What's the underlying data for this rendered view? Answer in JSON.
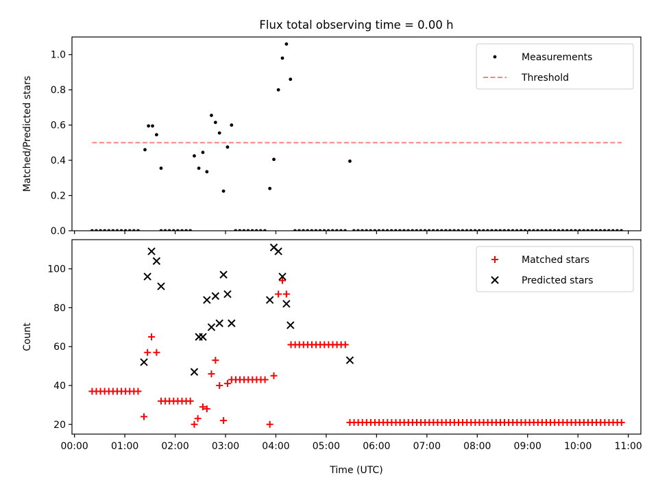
{
  "title": "Flux total observing time = 0.00 h",
  "x_axis_label": "Time (UTC)",
  "x_tick_labels": [
    "00:00",
    "01:00",
    "02:00",
    "03:00",
    "04:00",
    "05:00",
    "06:00",
    "07:00",
    "08:00",
    "09:00",
    "10:00",
    "11:00"
  ],
  "colors": {
    "measurements": "#000000",
    "threshold": "#ff7f7f",
    "matched": "#ff0000",
    "predicted": "#000000"
  },
  "chart_data": [
    {
      "type": "scatter",
      "ylabel": "Matched/Predicted stars",
      "xlim": [
        -0.05,
        11.25
      ],
      "ylim": [
        0,
        1.1
      ],
      "yticks": [
        0.0,
        0.2,
        0.4,
        0.6,
        0.8,
        1.0
      ],
      "ytick_labels": [
        "0.0",
        "0.2",
        "0.4",
        "0.6",
        "0.8",
        "1.0"
      ],
      "legend": {
        "placement": "upper right",
        "entries": [
          "Measurements",
          "Threshold"
        ]
      },
      "series": [
        {
          "name": "Measurements",
          "marker": "dot",
          "points": [
            [
              1.4,
              0.46
            ],
            [
              1.47,
              0.595
            ],
            [
              1.55,
              0.595
            ],
            [
              1.63,
              0.545
            ],
            [
              1.72,
              0.355
            ],
            [
              2.38,
              0.425
            ],
            [
              2.47,
              0.355
            ],
            [
              2.55,
              0.445
            ],
            [
              2.63,
              0.335
            ],
            [
              2.72,
              0.655
            ],
            [
              2.8,
              0.615
            ],
            [
              2.88,
              0.555
            ],
            [
              2.96,
              0.225
            ],
            [
              3.04,
              0.475
            ],
            [
              3.12,
              0.6
            ],
            [
              3.88,
              0.24
            ],
            [
              3.96,
              0.405
            ],
            [
              4.05,
              0.8
            ],
            [
              4.13,
              0.98
            ],
            [
              4.21,
              1.06
            ],
            [
              4.29,
              0.86
            ],
            [
              5.47,
              0.395
            ]
          ],
          "zero_runs": [
            [
              0.35,
              1.31
            ],
            [
              1.72,
              2.31
            ],
            [
              3.2,
              3.82
            ],
            [
              4.38,
              5.38
            ],
            [
              5.55,
              10.87
            ]
          ],
          "zero_step": 0.083
        },
        {
          "name": "Threshold",
          "type": "line",
          "style": "dashed",
          "x": [
            0.35,
            10.87
          ],
          "y": [
            0.5,
            0.5
          ]
        }
      ]
    },
    {
      "type": "scatter",
      "ylabel": "Count",
      "xlim": [
        -0.05,
        11.25
      ],
      "ylim": [
        15,
        115
      ],
      "yticks": [
        20,
        40,
        60,
        80,
        100
      ],
      "ytick_labels": [
        "20",
        "40",
        "60",
        "80",
        "100"
      ],
      "legend": {
        "placement": "upper right",
        "entries": [
          "Matched stars",
          "Predicted stars"
        ]
      },
      "series": [
        {
          "name": "Matched stars",
          "marker": "plus",
          "runs": [
            {
              "x_start": 0.35,
              "x_end": 1.31,
              "y": 37
            },
            {
              "x_start": 1.72,
              "x_end": 2.31,
              "y": 32
            },
            {
              "x_start": 3.12,
              "x_end": 3.82,
              "y": 43
            },
            {
              "x_start": 4.3,
              "x_end": 5.38,
              "y": 61
            },
            {
              "x_start": 5.47,
              "x_end": 10.87,
              "y": 21
            }
          ],
          "points": [
            [
              1.38,
              24
            ],
            [
              1.45,
              57
            ],
            [
              1.53,
              65
            ],
            [
              1.63,
              57
            ],
            [
              2.38,
              20
            ],
            [
              2.45,
              23
            ],
            [
              2.55,
              29
            ],
            [
              2.63,
              28
            ],
            [
              2.72,
              46
            ],
            [
              2.8,
              53
            ],
            [
              2.88,
              40
            ],
            [
              2.96,
              22
            ],
            [
              3.04,
              41
            ],
            [
              3.88,
              20
            ],
            [
              3.96,
              45
            ],
            [
              4.05,
              87
            ],
            [
              4.13,
              94
            ],
            [
              4.21,
              87
            ]
          ],
          "step": 0.083
        },
        {
          "name": "Predicted stars",
          "marker": "x",
          "points": [
            [
              1.38,
              52
            ],
            [
              1.45,
              96
            ],
            [
              1.53,
              109
            ],
            [
              1.63,
              104
            ],
            [
              1.72,
              91
            ],
            [
              2.38,
              47
            ],
            [
              2.47,
              65
            ],
            [
              2.55,
              65
            ],
            [
              2.63,
              84
            ],
            [
              2.72,
              70
            ],
            [
              2.8,
              86
            ],
            [
              2.88,
              72
            ],
            [
              2.96,
              97
            ],
            [
              3.04,
              87
            ],
            [
              3.12,
              72
            ],
            [
              3.88,
              84
            ],
            [
              3.96,
              111
            ],
            [
              4.05,
              109
            ],
            [
              4.13,
              96
            ],
            [
              4.21,
              82
            ],
            [
              4.29,
              71
            ],
            [
              5.47,
              53
            ]
          ]
        }
      ]
    }
  ]
}
